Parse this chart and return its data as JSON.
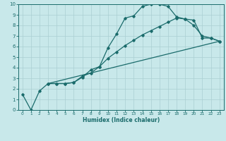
{
  "xlabel": "Humidex (Indice chaleur)",
  "xlim": [
    -0.5,
    23.5
  ],
  "ylim": [
    0,
    10
  ],
  "xticks": [
    0,
    1,
    2,
    3,
    4,
    5,
    6,
    7,
    8,
    9,
    10,
    11,
    12,
    13,
    14,
    15,
    16,
    17,
    18,
    19,
    20,
    21,
    22,
    23
  ],
  "yticks": [
    0,
    1,
    2,
    3,
    4,
    5,
    6,
    7,
    8,
    9,
    10
  ],
  "bg_color": "#c8e8ea",
  "grid_color": "#aacfd2",
  "line_color": "#1a6b6b",
  "line1_x": [
    0,
    1,
    2,
    3,
    4,
    5,
    6,
    7,
    8,
    9,
    10,
    11,
    12,
    13,
    14,
    15,
    16,
    17,
    18,
    19,
    20,
    21,
    22,
    23
  ],
  "line1_y": [
    1.5,
    0.0,
    1.8,
    2.5,
    2.5,
    2.5,
    2.6,
    3.2,
    3.5,
    4.1,
    5.9,
    7.2,
    8.7,
    8.9,
    9.8,
    10.0,
    10.0,
    9.8,
    8.8,
    8.6,
    8.0,
    7.0,
    6.8,
    6.5
  ],
  "line2_x": [
    3,
    4,
    5,
    6,
    7,
    8,
    9,
    10,
    11,
    12,
    13,
    14,
    15,
    16,
    17,
    18,
    19,
    20,
    21,
    22,
    23
  ],
  "line2_y": [
    2.5,
    2.5,
    2.5,
    2.6,
    3.1,
    3.8,
    4.1,
    4.9,
    5.5,
    6.1,
    6.6,
    7.1,
    7.5,
    7.9,
    8.3,
    8.7,
    8.6,
    8.5,
    6.8,
    6.8,
    6.5
  ],
  "line3_x": [
    3,
    23
  ],
  "line3_y": [
    2.5,
    6.5
  ]
}
